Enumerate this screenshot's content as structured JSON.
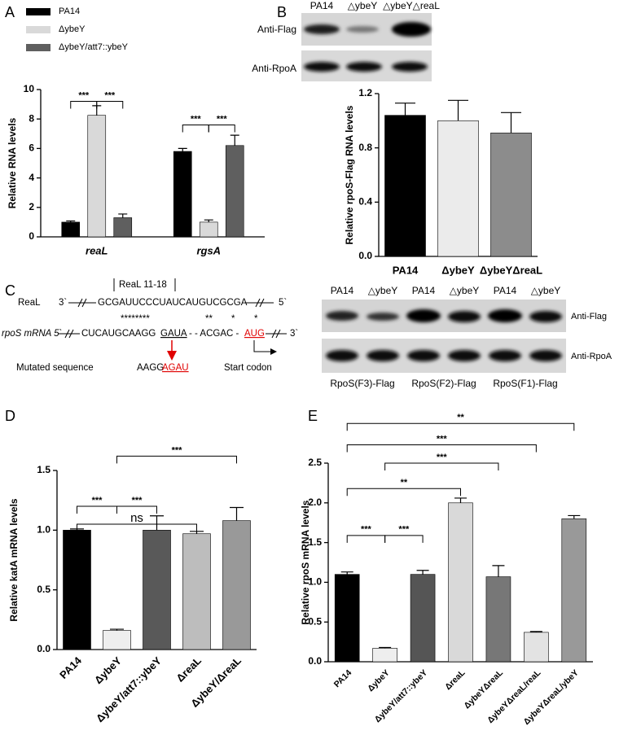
{
  "panel_labels": [
    "A",
    "B",
    "C",
    "D",
    "E"
  ],
  "blot_b": {
    "lanes": [
      "PA14",
      "△ybeY",
      "△ybeY△reaL"
    ],
    "rows": [
      "Anti-Flag",
      "Anti-RpoA"
    ]
  },
  "blot_c": {
    "lanes": [
      "PA14",
      "△ybeY",
      "PA14",
      "△ybeY",
      "PA14",
      "△ybeY"
    ],
    "rows": [
      "Anti-Flag",
      "Anti-RpoA"
    ],
    "groups": [
      "RpoS(F3)-Flag",
      "RpoS(F2)-Flag",
      "RpoS(F1)-Flag"
    ]
  },
  "diagram": {
    "bracket_label": "ReaL 11-18",
    "real_name": "ReaL",
    "real_3": "3`",
    "real_seq": "GCGAUUCCCUAUCAUGUCGCGA",
    "real_5": "5`",
    "stars": [
      "********",
      "**",
      "*",
      "*"
    ],
    "rpos_name": "rpoS mRNA 5`",
    "rpos_seq1": "CUCAUGCAAGG",
    "rpos_seq2": "GAUA",
    "rpos_seq3": "- - ACGAC -",
    "rpos_start": "AUG",
    "rpos_3": "3`",
    "mut_label": "Mutated sequence",
    "mut_seq1": "AAGG",
    "mut_seq2": "AGAU",
    "start_label": "Start codon"
  },
  "chart_data": [
    {
      "type": "bar",
      "ylabel": "Relative RNA levels",
      "categories": [
        "reaL",
        "rgsA"
      ],
      "series": [
        {
          "name": "PA14",
          "color": "#000000",
          "values": [
            1,
            5.8
          ],
          "errors": [
            0.08,
            0.2
          ]
        },
        {
          "name": "ΔybeY",
          "color": "#d9d9d9",
          "values": [
            8.25,
            1
          ],
          "errors": [
            0.65,
            0.15
          ]
        },
        {
          "name": "ΔybeY/att7::ybeY",
          "color": "#5f5f5f",
          "values": [
            1.3,
            6.2
          ],
          "errors": [
            0.25,
            0.7
          ]
        }
      ],
      "ylim": [
        0,
        10
      ],
      "yticks": [
        0,
        2,
        4,
        6,
        8,
        10
      ],
      "annotations": [
        "***",
        "***",
        "***",
        "***"
      ]
    },
    {
      "type": "bar",
      "ylabel": "Relative rpoS-Flag RNA levels",
      "categories": [
        "PA14",
        "ΔybeY",
        "ΔybeYΔreaL"
      ],
      "values": [
        1.04,
        1,
        0.91
      ],
      "errors": [
        0.09,
        0.15,
        0.15
      ],
      "colors": [
        "#000000",
        "#ebebeb",
        "#8c8c8c"
      ],
      "ylim": [
        0,
        1.2
      ],
      "yticks": [
        {
          "value": 0,
          "label": "0.0"
        },
        0.4,
        0.8,
        1.2
      ],
      "annotations": []
    },
    {
      "type": "bar",
      "ylabel": "Relative katA mRNA levels",
      "categories": [
        "PA14",
        "ΔybeY",
        "ΔybeY/att7::ybeY",
        "ΔreaL",
        "ΔybeY/ΔreaL"
      ],
      "values": [
        1,
        0.16,
        1,
        0.97,
        1.08
      ],
      "errors": [
        0.01,
        0.01,
        0.12,
        0.02,
        0.11
      ],
      "colors": [
        "#000000",
        "#eeeeee",
        "#595959",
        "#bdbdbd",
        "#999999"
      ],
      "ylim": [
        0,
        1.5
      ],
      "yticks": [
        {
          "value": 0,
          "label": "0.0"
        },
        0.5,
        {
          "value": 1,
          "label": "1.0"
        },
        1.5
      ],
      "annotations": [
        "***",
        "***",
        "ns",
        "***"
      ]
    },
    {
      "type": "bar",
      "ylabel": "Relative rpoS mRNA levels",
      "categories": [
        "PA14",
        "ΔybeY",
        "ΔybeY/att7::ybeY",
        "ΔreaL",
        "ΔybeYΔreaL",
        "ΔybeYΔreaL/reaL",
        "ΔybeYΔreaL/ybeY"
      ],
      "values": [
        1.1,
        0.17,
        1.1,
        2,
        1.07,
        0.37,
        1.8
      ],
      "errors": [
        0.03,
        0.01,
        0.05,
        0.06,
        0.14,
        0.01,
        0.04
      ],
      "colors": [
        "#000000",
        "#eeeeee",
        "#555555",
        "#d9d9d9",
        "#777777",
        "#e3e3e3",
        "#999999"
      ],
      "ylim": [
        0,
        2.5
      ],
      "yticks": [
        {
          "value": 0,
          "label": "0.0"
        },
        0.5,
        {
          "value": 1,
          "label": "1.0"
        },
        1.5,
        {
          "value": 2,
          "label": "2.0"
        },
        2.5
      ],
      "annotations": [
        "***",
        "***",
        "**",
        "***",
        "***",
        "**"
      ]
    }
  ]
}
